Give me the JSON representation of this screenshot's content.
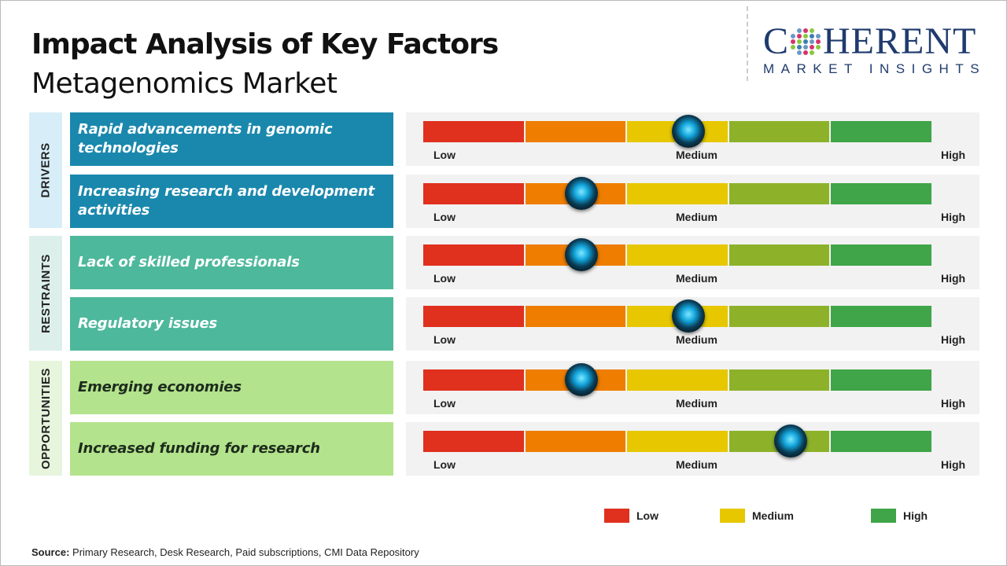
{
  "title": "Impact Analysis of Key Factors",
  "subtitle": "Metagenomics Market",
  "logo": {
    "main": "COHERENT",
    "sub": "MARKET INSIGHTS"
  },
  "categories": [
    {
      "label": "DRIVERS"
    },
    {
      "label": "RESTRAINTS"
    },
    {
      "label": "OPPORTUNITIES"
    }
  ],
  "colors": {
    "segments": [
      "#e0301e",
      "#ef7d00",
      "#e6c700",
      "#8db22a",
      "#3fa548"
    ],
    "drivers": "#1a88ad",
    "restraints": "#4db89b",
    "opportunities": "#b3e38c"
  },
  "scale_labels": {
    "low": "Low",
    "medium": "Medium",
    "high": "High"
  },
  "chart_data": {
    "type": "gauge",
    "scale": [
      "Low",
      "Medium",
      "High"
    ],
    "rows": [
      {
        "category": "DRIVERS",
        "factor": "Rapid advancements in genomic technologies",
        "impact": 0.52
      },
      {
        "category": "DRIVERS",
        "factor": "Increasing research and development activities",
        "impact": 0.31
      },
      {
        "category": "RESTRAINTS",
        "factor": "Lack of skilled professionals",
        "impact": 0.31
      },
      {
        "category": "RESTRAINTS",
        "factor": "Regulatory issues",
        "impact": 0.52
      },
      {
        "category": "OPPORTUNITIES",
        "factor": "Emerging economies",
        "impact": 0.31
      },
      {
        "category": "OPPORTUNITIES",
        "factor": "Increased funding for research",
        "impact": 0.72
      }
    ]
  },
  "legend": [
    {
      "label": "Low",
      "color": "#e0301e"
    },
    {
      "label": "Medium",
      "color": "#e6c700"
    },
    {
      "label": "High",
      "color": "#3fa548"
    }
  ],
  "source": {
    "label": "Source:",
    "text": " Primary Research, Desk Research, Paid subscriptions, CMI Data Repository"
  }
}
